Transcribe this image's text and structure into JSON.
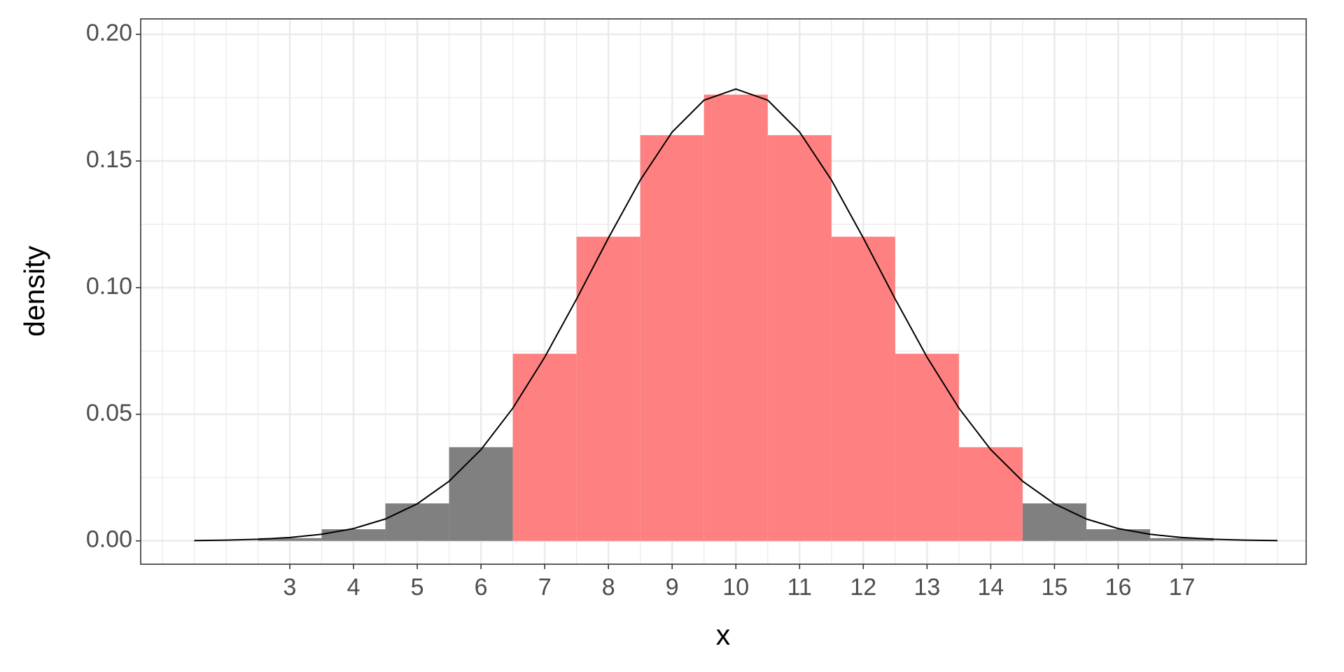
{
  "chart_data": {
    "type": "histogram",
    "xlabel": "x",
    "ylabel": "density",
    "bins": [
      2.5,
      3.5,
      4.5,
      5.5,
      6.5,
      7.5,
      8.5,
      9.5,
      10.5,
      11.5,
      12.5,
      13.5,
      14.5,
      15.5,
      16.5,
      17.5
    ],
    "values": [
      0.0011,
      0.0046,
      0.0148,
      0.037,
      0.0739,
      0.1201,
      0.1602,
      0.1762,
      0.1602,
      0.1201,
      0.0739,
      0.037,
      0.0148,
      0.0046,
      0.0011
    ],
    "colors": [
      "#808080",
      "#808080",
      "#808080",
      "#808080",
      "#ff8080",
      "#ff8080",
      "#ff8080",
      "#ff8080",
      "#ff8080",
      "#ff8080",
      "#ff8080",
      "#ff8080",
      "#808080",
      "#808080",
      "#808080"
    ],
    "curve": {
      "color": "#000000",
      "x": [
        1.5,
        2,
        2.5,
        3,
        3.5,
        4,
        4.5,
        5,
        5.5,
        6,
        6.5,
        7,
        7.5,
        8,
        8.5,
        9,
        9.5,
        10,
        10.5,
        11,
        11.5,
        12,
        12.5,
        13,
        13.5,
        14,
        14.5,
        15,
        15.5,
        16,
        16.5,
        17,
        17.5,
        18,
        18.5
      ],
      "y": [
        0.00013,
        0.0003,
        0.00064,
        0.00133,
        0.00261,
        0.00487,
        0.00866,
        0.01465,
        0.02355,
        0.03602,
        0.05241,
        0.07254,
        0.0955,
        0.11959,
        0.14247,
        0.16143,
        0.17401,
        0.17841,
        0.17401,
        0.16143,
        0.14247,
        0.11959,
        0.0955,
        0.07254,
        0.05241,
        0.03602,
        0.02355,
        0.01465,
        0.00866,
        0.00487,
        0.00261,
        0.00133,
        0.00064,
        0.0003,
        0.00013
      ]
    },
    "xlim": [
      0.66,
      18.95
    ],
    "ylim": [
      -0.0092,
      0.2061
    ],
    "xticks": [
      3,
      4,
      5,
      6,
      7,
      8,
      9,
      10,
      11,
      12,
      13,
      14,
      15,
      16,
      17
    ],
    "yticks": [
      {
        "value": 0,
        "label": "0.00"
      },
      {
        "value": 0.05,
        "label": "0.05"
      },
      {
        "value": 0.1,
        "label": "0.10"
      },
      {
        "value": 0.15,
        "label": "0.15"
      },
      {
        "value": 0.2,
        "label": "0.20"
      }
    ],
    "grid": true
  }
}
